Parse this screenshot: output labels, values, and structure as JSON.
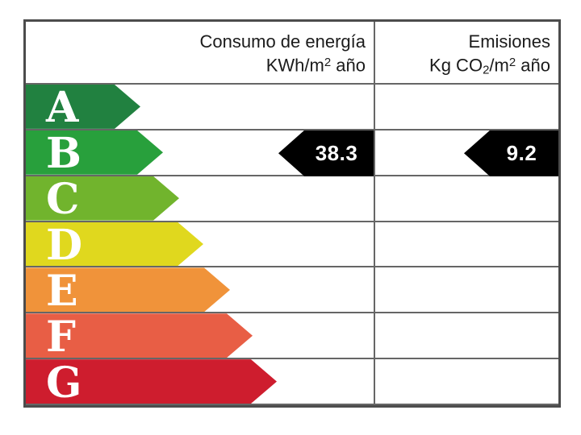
{
  "header": {
    "energy_col": {
      "line1": "Consumo de energía",
      "unit_parts": [
        "KWh/m",
        "2",
        " año"
      ]
    },
    "emissions_col": {
      "line1": "Emisiones",
      "unit_parts": [
        "Kg CO",
        "2",
        "/m",
        "2",
        " año"
      ]
    }
  },
  "chart_data": {
    "type": "bar",
    "chart_kind": "energy-efficiency-rating-label",
    "categories": [
      "A",
      "B",
      "C",
      "D",
      "E",
      "F",
      "G"
    ],
    "ratings": [
      {
        "letter": "A",
        "color": "#218140"
      },
      {
        "letter": "B",
        "color": "#28a03c"
      },
      {
        "letter": "C",
        "color": "#71b42d"
      },
      {
        "letter": "D",
        "color": "#e0d81e"
      },
      {
        "letter": "E",
        "color": "#f0933a"
      },
      {
        "letter": "F",
        "color": "#e85e45"
      },
      {
        "letter": "G",
        "color": "#ce1d2e"
      }
    ],
    "series": [
      {
        "name": "Consumo de energía (KWh/m2 año)",
        "value": "38.3",
        "rating": "B"
      },
      {
        "name": "Emisiones (Kg CO2/m2 año)",
        "value": "9.2",
        "rating": "B"
      }
    ],
    "indicator_color": "#000000",
    "grid": true,
    "legend_position": "none"
  }
}
